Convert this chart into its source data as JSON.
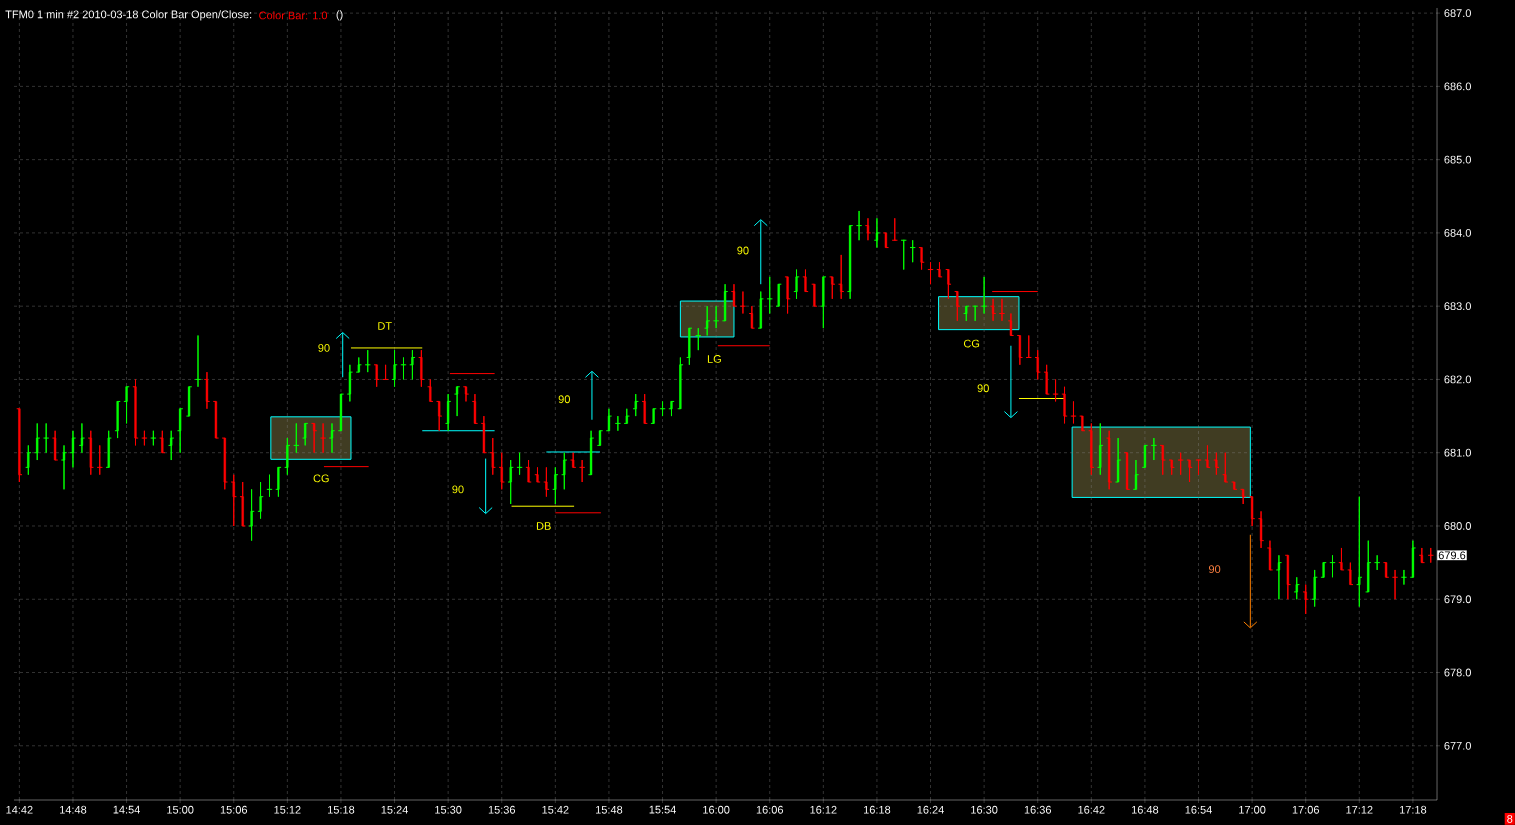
{
  "chart_data": {
    "type": "candlestick",
    "title": "TFM0 1 min #2 2010-03-18 Color Bar Open/Close:",
    "subtitle": "Color Bar: 1.0",
    "annotations": [
      "()",
      "8",
      {
        "text": "679.6",
        "x": 17.345,
        "y": 679.6
      },
      "90",
      "DT",
      "CG",
      "90",
      "DB",
      "90",
      "LG",
      "90",
      "CG",
      "90",
      "90"
    ],
    "x": [
      14.7,
      14.7167,
      14.7333,
      14.75,
      14.7667,
      14.7833,
      14.8,
      14.8167,
      14.8333,
      14.85,
      14.8667,
      14.8833,
      14.9,
      14.9167,
      14.9333,
      14.95,
      14.9667,
      14.9833,
      15,
      15.0167,
      15.0333,
      15.05,
      15.0667,
      15.0833,
      15.1,
      15.1167,
      15.1333,
      15.15,
      15.1667,
      15.1833,
      15.2,
      15.2167,
      15.2333,
      15.25,
      15.2667,
      15.2833,
      15.3,
      15.3167,
      15.3333,
      15.35,
      15.3667,
      15.3833,
      15.4,
      15.4167,
      15.4333,
      15.45,
      15.4667,
      15.4833,
      15.5,
      15.5167,
      15.5333,
      15.55,
      15.5667,
      15.5833,
      15.6,
      15.6167,
      15.6333,
      15.65,
      15.6667,
      15.6833,
      15.7,
      15.7167,
      15.7333,
      15.75,
      15.7667,
      15.7833,
      15.8,
      15.8167,
      15.8333,
      15.85,
      15.8667,
      15.8833,
      15.9,
      15.9167,
      15.9333,
      15.95,
      15.9667,
      15.9833,
      16,
      16.0167,
      16.0333,
      16.05,
      16.0667,
      16.0833,
      16.1,
      16.1167,
      16.1333,
      16.15,
      16.1667,
      16.1833,
      16.2,
      16.2167,
      16.2333,
      16.25,
      16.2667,
      16.2833,
      16.3,
      16.3167,
      16.3333,
      16.35,
      16.3667,
      16.3833,
      16.4,
      16.4167,
      16.4333,
      16.45,
      16.4667,
      16.4833,
      16.5,
      16.5167,
      16.5333,
      16.55,
      16.5667,
      16.5833,
      16.6,
      16.6167,
      16.6333,
      16.65,
      16.6667,
      16.6833,
      16.7,
      16.7167,
      16.7333,
      16.75,
      16.7667,
      16.7833,
      16.8,
      16.8167,
      16.8333,
      16.85,
      16.8667,
      16.8833,
      16.9,
      16.9167,
      16.9333,
      16.95,
      16.9667,
      16.9833,
      17,
      17.0167,
      17.0333,
      17.05,
      17.0667,
      17.0833,
      17.1,
      17.1167,
      17.1333,
      17.15,
      17.1667,
      17.1833,
      17.2,
      17.2167,
      17.2333,
      17.25,
      17.2667,
      17.2833,
      17.3,
      17.3167,
      17.3333
    ],
    "ohlc": [
      [
        681.6,
        681.6,
        680.6,
        680.7
      ],
      [
        680.8,
        681.1,
        680.7,
        681.0
      ],
      [
        681.0,
        681.4,
        680.9,
        681.2
      ],
      [
        681.2,
        681.4,
        681.0,
        681.2
      ],
      [
        681.2,
        681.3,
        680.9,
        680.9
      ],
      [
        680.9,
        681.1,
        680.5,
        681.0
      ],
      [
        681.0,
        681.3,
        680.8,
        681.2
      ],
      [
        681.1,
        681.4,
        681.0,
        681.2
      ],
      [
        681.2,
        681.3,
        680.7,
        680.8
      ],
      [
        680.8,
        681.1,
        680.7,
        680.8
      ],
      [
        680.8,
        681.3,
        680.8,
        681.2
      ],
      [
        681.3,
        681.7,
        681.2,
        681.7
      ],
      [
        681.7,
        681.9,
        681.4,
        681.9
      ],
      [
        681.9,
        682.0,
        681.1,
        681.2
      ],
      [
        681.2,
        681.3,
        681.1,
        681.2
      ],
      [
        681.2,
        681.3,
        681.1,
        681.2
      ],
      [
        681.2,
        681.3,
        681.0,
        681.0
      ],
      [
        681.1,
        681.3,
        680.9,
        681.2
      ],
      [
        681.3,
        681.6,
        681.0,
        681.6
      ],
      [
        681.5,
        681.9,
        681.5,
        681.9
      ],
      [
        682.0,
        682.6,
        681.9,
        682.0
      ],
      [
        682.0,
        682.1,
        681.6,
        681.7
      ],
      [
        681.7,
        681.7,
        681.2,
        681.2
      ],
      [
        681.2,
        681.2,
        680.5,
        680.6
      ],
      [
        680.6,
        680.7,
        680.0,
        680.4
      ],
      [
        680.4,
        680.6,
        680.0,
        680.0
      ],
      [
        680.0,
        680.5,
        679.8,
        680.2
      ],
      [
        680.2,
        680.6,
        680.1,
        680.4
      ],
      [
        680.5,
        680.7,
        680.4,
        680.5
      ],
      [
        680.5,
        680.8,
        680.4,
        680.8
      ],
      [
        680.8,
        681.2,
        680.7,
        681.1
      ],
      [
        681.1,
        681.4,
        681.0,
        681.1
      ],
      [
        681.2,
        681.4,
        681.1,
        681.4
      ],
      [
        681.4,
        681.4,
        681.0,
        681.3
      ],
      [
        681.2,
        681.4,
        681.0,
        681.2
      ],
      [
        681.2,
        681.4,
        681.0,
        681.3
      ],
      [
        681.3,
        681.8,
        681.3,
        681.8
      ],
      [
        681.8,
        682.2,
        681.7,
        682.1
      ],
      [
        682.1,
        682.3,
        682.1,
        682.2
      ],
      [
        682.2,
        682.4,
        682.1,
        682.2
      ],
      [
        682.2,
        682.2,
        681.9,
        682.0
      ],
      [
        682.0,
        682.2,
        682.0,
        682.0
      ],
      [
        682.0,
        682.4,
        681.9,
        682.2
      ],
      [
        682.2,
        682.3,
        682.0,
        682.2
      ],
      [
        682.2,
        682.4,
        682.0,
        682.3
      ],
      [
        682.3,
        682.4,
        681.9,
        682.0
      ],
      [
        681.9,
        682.0,
        681.7,
        681.7
      ],
      [
        681.7,
        681.7,
        681.3,
        681.5
      ],
      [
        681.4,
        681.8,
        681.3,
        681.7
      ],
      [
        681.8,
        681.9,
        681.5,
        681.9
      ],
      [
        681.9,
        681.9,
        681.7,
        681.8
      ],
      [
        681.7,
        681.8,
        681.4,
        681.4
      ],
      [
        681.4,
        681.5,
        681.0,
        681.0
      ],
      [
        681.0,
        681.2,
        680.7,
        680.8
      ],
      [
        680.8,
        681.0,
        680.5,
        680.6
      ],
      [
        680.6,
        680.9,
        680.3,
        680.8
      ],
      [
        680.8,
        681.0,
        680.7,
        680.8
      ],
      [
        680.8,
        680.9,
        680.6,
        680.6
      ],
      [
        680.7,
        680.8,
        680.6,
        680.6
      ],
      [
        680.6,
        680.8,
        680.4,
        680.5
      ],
      [
        680.5,
        680.8,
        680.3,
        680.7
      ],
      [
        680.7,
        681.0,
        680.5,
        680.9
      ],
      [
        680.9,
        681.0,
        680.8,
        680.8
      ],
      [
        680.8,
        680.9,
        680.6,
        680.8
      ],
      [
        680.7,
        681.3,
        680.7,
        681.2
      ],
      [
        681.1,
        681.3,
        681.1,
        681.3
      ],
      [
        681.3,
        681.6,
        681.3,
        681.5
      ],
      [
        681.4,
        681.5,
        681.3,
        681.4
      ],
      [
        681.4,
        681.6,
        681.4,
        681.5
      ],
      [
        681.6,
        681.8,
        681.5,
        681.7
      ],
      [
        681.7,
        681.8,
        681.4,
        681.4
      ],
      [
        681.4,
        681.6,
        681.4,
        681.6
      ],
      [
        681.6,
        681.7,
        681.5,
        681.6
      ],
      [
        681.6,
        681.7,
        681.5,
        681.7
      ],
      [
        681.6,
        682.3,
        681.6,
        682.2
      ],
      [
        682.3,
        682.7,
        682.2,
        682.7
      ],
      [
        682.6,
        682.7,
        682.4,
        682.6
      ],
      [
        682.7,
        683.0,
        682.6,
        682.8
      ],
      [
        682.8,
        683.0,
        682.7,
        682.8
      ],
      [
        682.8,
        683.3,
        682.8,
        683.2
      ],
      [
        683.2,
        683.3,
        683.0,
        683.0
      ],
      [
        683.0,
        683.2,
        682.9,
        683.0
      ],
      [
        682.9,
        683.0,
        682.7,
        682.7
      ],
      [
        682.7,
        683.2,
        682.7,
        683.1
      ],
      [
        683.1,
        683.4,
        682.9,
        683.1
      ],
      [
        683.0,
        683.3,
        683.0,
        683.3
      ],
      [
        683.4,
        683.4,
        682.9,
        683.1
      ],
      [
        683.2,
        683.5,
        683.1,
        683.4
      ],
      [
        683.4,
        683.5,
        683.2,
        683.2
      ],
      [
        683.3,
        683.3,
        683.0,
        683.0
      ],
      [
        683.0,
        683.4,
        682.7,
        683.4
      ],
      [
        683.4,
        683.4,
        683.1,
        683.3
      ],
      [
        683.3,
        683.7,
        683.1,
        683.2
      ],
      [
        683.2,
        684.1,
        683.1,
        684.1
      ],
      [
        684.1,
        684.3,
        683.9,
        684.1
      ],
      [
        684.1,
        684.2,
        683.9,
        684.0
      ],
      [
        683.9,
        684.2,
        683.8,
        684.0
      ],
      [
        684.0,
        684.0,
        683.8,
        683.8
      ],
      [
        683.9,
        684.2,
        683.9,
        683.9
      ],
      [
        683.9,
        683.9,
        683.5,
        683.9
      ],
      [
        683.8,
        683.9,
        683.6,
        683.8
      ],
      [
        683.8,
        683.8,
        683.5,
        683.6
      ],
      [
        683.5,
        683.6,
        683.3,
        683.5
      ],
      [
        683.5,
        683.6,
        683.4,
        683.4
      ],
      [
        683.5,
        683.5,
        683.1,
        683.3
      ],
      [
        683.2,
        683.2,
        682.8,
        683.0
      ],
      [
        682.9,
        683.0,
        682.8,
        683.0
      ],
      [
        683.0,
        683.0,
        682.8,
        683.0
      ],
      [
        683.0,
        683.4,
        682.9,
        683.0
      ],
      [
        683.0,
        683.1,
        682.8,
        682.9
      ],
      [
        682.9,
        683.1,
        682.8,
        682.9
      ],
      [
        682.8,
        682.9,
        682.6,
        682.6
      ],
      [
        682.6,
        682.6,
        682.2,
        682.3
      ],
      [
        682.3,
        682.6,
        682.3,
        682.3
      ],
      [
        682.3,
        682.4,
        682.0,
        682.1
      ],
      [
        682.1,
        682.2,
        681.8,
        681.8
      ],
      [
        681.8,
        682.0,
        681.7,
        681.8
      ],
      [
        681.8,
        681.9,
        681.4,
        681.5
      ],
      [
        681.5,
        681.7,
        681.4,
        681.5
      ],
      [
        681.5,
        681.5,
        681.3,
        681.3
      ],
      [
        681.3,
        681.4,
        680.7,
        680.8
      ],
      [
        680.8,
        681.4,
        680.7,
        681.1
      ],
      [
        681.2,
        681.3,
        680.5,
        680.6
      ],
      [
        680.6,
        681.2,
        680.6,
        680.9
      ],
      [
        681.0,
        681.0,
        680.5,
        680.5
      ],
      [
        680.5,
        680.9,
        680.5,
        680.7
      ],
      [
        680.8,
        681.1,
        680.8,
        681.1
      ],
      [
        681.1,
        681.2,
        680.9,
        681.1
      ],
      [
        681.1,
        681.1,
        680.7,
        680.9
      ],
      [
        680.9,
        680.9,
        680.7,
        680.8
      ],
      [
        680.9,
        681.0,
        680.7,
        680.9
      ],
      [
        680.9,
        680.9,
        680.6,
        680.8
      ],
      [
        680.9,
        680.9,
        680.7,
        680.9
      ],
      [
        680.9,
        681.1,
        680.8,
        680.8
      ],
      [
        680.9,
        681.0,
        680.7,
        680.8
      ],
      [
        680.7,
        681.0,
        680.6,
        680.6
      ],
      [
        680.6,
        680.6,
        680.5,
        680.5
      ],
      [
        680.5,
        680.5,
        680.3,
        680.4
      ],
      [
        680.4,
        680.4,
        680.0,
        680.1
      ],
      [
        680.1,
        680.2,
        679.7,
        679.8
      ],
      [
        679.7,
        679.8,
        679.4,
        679.4
      ],
      [
        679.4,
        679.6,
        679.0,
        679.5
      ],
      [
        679.6,
        679.6,
        679.0,
        679.2
      ],
      [
        679.1,
        679.3,
        679.0,
        679.2
      ],
      [
        679.1,
        679.2,
        678.8,
        679.0
      ],
      [
        679.0,
        679.4,
        678.9,
        679.3
      ],
      [
        679.3,
        679.5,
        679.3,
        679.5
      ],
      [
        679.5,
        679.6,
        679.3,
        679.5
      ],
      [
        679.5,
        679.7,
        679.4,
        679.4
      ],
      [
        679.4,
        679.5,
        679.2,
        679.2
      ],
      [
        679.2,
        680.4,
        678.9,
        679.3
      ],
      [
        679.1,
        679.8,
        679.1,
        679.5
      ],
      [
        679.5,
        679.6,
        679.4,
        679.5
      ],
      [
        679.5,
        679.5,
        679.3,
        679.3
      ],
      [
        679.3,
        679.4,
        679.0,
        679.3
      ],
      [
        679.3,
        679.4,
        679.2,
        679.3
      ],
      [
        679.3,
        679.8,
        679.3,
        679.7
      ],
      [
        679.6,
        679.7,
        679.5,
        679.5
      ],
      [
        679.6,
        679.7,
        679.5,
        679.6
      ]
    ],
    "colors": [
      "#ff0000",
      "#00ff00",
      "#00ff00",
      "#00ff00",
      "#ff0000",
      "#00ff00",
      "#00ff00",
      "#00ff00",
      "#ff0000",
      "#ff0000",
      "#00ff00",
      "#00ff00",
      "#00ff00",
      "#ff0000",
      "#ff0000",
      "#00ff00",
      "#ff0000",
      "#00ff00",
      "#00ff00",
      "#00ff00",
      "#00ff00",
      "#ff0000",
      "#ff0000",
      "#ff0000",
      "#ff0000",
      "#ff0000",
      "#00ff00",
      "#00ff00",
      "#00ff00",
      "#00ff00",
      "#00ff00",
      "#00ff00",
      "#00ff00",
      "#ff0000",
      "#ff0000",
      "#00ff00",
      "#00ff00",
      "#00ff00",
      "#00ff00",
      "#00ff00",
      "#ff0000",
      "#ff0000",
      "#00ff00",
      "#00ff00",
      "#00ff00",
      "#ff0000",
      "#ff0000",
      "#ff0000",
      "#00ff00",
      "#00ff00",
      "#ff0000",
      "#ff0000",
      "#ff0000",
      "#ff0000",
      "#ff0000",
      "#00ff00",
      "#00ff00",
      "#ff0000",
      "#ff0000",
      "#ff0000",
      "#00ff00",
      "#00ff00",
      "#ff0000",
      "#ff0000",
      "#00ff00",
      "#00ff00",
      "#00ff00",
      "#00ff00",
      "#00ff00",
      "#00ff00",
      "#ff0000",
      "#00ff00",
      "#00ff00",
      "#00ff00",
      "#00ff00",
      "#00ff00",
      "#00ff00",
      "#00ff00",
      "#00ff00",
      "#00ff00",
      "#ff0000",
      "#ff0000",
      "#ff0000",
      "#00ff00",
      "#00ff00",
      "#00ff00",
      "#ff0000",
      "#00ff00",
      "#ff0000",
      "#ff0000",
      "#00ff00",
      "#ff0000",
      "#ff0000",
      "#00ff00",
      "#00ff00",
      "#ff0000",
      "#00ff00",
      "#ff0000",
      "#ff0000",
      "#00ff00",
      "#00ff00",
      "#ff0000",
      "#ff0000",
      "#ff0000",
      "#ff0000",
      "#ff0000",
      "#00ff00",
      "#00ff00",
      "#00ff00",
      "#ff0000",
      "#ff0000",
      "#ff0000",
      "#ff0000",
      "#ff0000",
      "#ff0000",
      "#ff0000",
      "#ff0000",
      "#ff0000",
      "#ff0000",
      "#ff0000",
      "#ff0000",
      "#00ff00",
      "#ff0000",
      "#00ff00",
      "#ff0000",
      "#00ff00",
      "#00ff00",
      "#00ff00",
      "#ff0000",
      "#ff0000",
      "#ff0000",
      "#ff0000",
      "#ff0000",
      "#ff0000",
      "#ff0000",
      "#ff0000",
      "#ff0000",
      "#ff0000",
      "#ff0000",
      "#ff0000",
      "#ff0000",
      "#00ff00",
      "#ff0000",
      "#00ff00",
      "#ff0000",
      "#00ff00",
      "#00ff00",
      "#00ff00",
      "#ff0000",
      "#ff0000",
      "#00ff00",
      "#00ff00",
      "#00ff00",
      "#ff0000",
      "#ff0000",
      "#00ff00",
      "#00ff00",
      "#ff0000",
      "#ff0000"
    ],
    "series": [
      {
        "type": "line",
        "color": "#ffff00",
        "x": [
          15.3187,
          15.4517
        ],
        "values": [
          682.43,
          682.43
        ]
      },
      {
        "type": "line",
        "color": "#ff0000",
        "x": [
          15.5033,
          15.5867
        ],
        "values": [
          682.08,
          682.08
        ]
      },
      {
        "type": "line",
        "color": "#00ffff",
        "x": [
          15.4517,
          15.5867
        ],
        "values": [
          681.3,
          681.3
        ]
      },
      {
        "type": "line",
        "color": "#ff0000",
        "x": [
          15.2683,
          15.3517
        ],
        "values": [
          680.81,
          680.81
        ]
      },
      {
        "type": "line",
        "color": "#00ffff",
        "x": [
          15.6833,
          15.7833
        ],
        "values": [
          681.01,
          681.01
        ]
      },
      {
        "type": "line",
        "color": "#ffff00",
        "x": [
          15.6183,
          15.735
        ],
        "values": [
          680.27,
          680.27
        ]
      },
      {
        "type": "line",
        "color": "#ff0000",
        "x": [
          15.7,
          15.785
        ],
        "values": [
          680.18,
          680.18
        ]
      },
      {
        "type": "line",
        "color": "#ff0000",
        "x": [
          16.0033,
          16.1
        ],
        "values": [
          682.46,
          682.46
        ]
      },
      {
        "type": "line",
        "color": "#ff0000",
        "x": [
          16.515,
          16.6
        ],
        "values": [
          683.2,
          683.2
        ]
      },
      {
        "type": "line",
        "color": "#ffff00",
        "x": [
          16.565,
          16.65
        ],
        "values": [
          681.74,
          681.74
        ]
      }
    ],
    "xlim": [
      14.69,
      17.345
    ],
    "ylim": [
      676.26,
      687.07
    ],
    "xticks": [
      {
        "value": 14.7,
        "label": "14:42"
      },
      {
        "value": 14.8,
        "label": "14:48"
      },
      {
        "value": 14.9,
        "label": "14:54"
      },
      {
        "value": 15.0,
        "label": "15:00"
      },
      {
        "value": 15.1,
        "label": "15:06"
      },
      {
        "value": 15.2,
        "label": "15:12"
      },
      {
        "value": 15.3,
        "label": "15:18"
      },
      {
        "value": 15.4,
        "label": "15:24"
      },
      {
        "value": 15.5,
        "label": "15:30"
      },
      {
        "value": 15.6,
        "label": "15:36"
      },
      {
        "value": 15.7,
        "label": "15:42"
      },
      {
        "value": 15.8,
        "label": "15:48"
      },
      {
        "value": 15.9,
        "label": "15:54"
      },
      {
        "value": 16.0,
        "label": "16:00"
      },
      {
        "value": 16.1,
        "label": "16:06"
      },
      {
        "value": 16.2,
        "label": "16:12"
      },
      {
        "value": 16.3,
        "label": "16:18"
      },
      {
        "value": 16.4,
        "label": "16:24"
      },
      {
        "value": 16.5,
        "label": "16:30"
      },
      {
        "value": 16.6,
        "label": "16:36"
      },
      {
        "value": 16.7,
        "label": "16:42"
      },
      {
        "value": 16.8,
        "label": "16:48"
      },
      {
        "value": 16.9,
        "label": "16:54"
      },
      {
        "value": 17.0,
        "label": "17:00"
      },
      {
        "value": 17.1,
        "label": "17:06"
      },
      {
        "value": 17.2,
        "label": "17:12"
      },
      {
        "value": 17.3,
        "label": "17:18"
      }
    ],
    "yticks": [
      {
        "value": 677,
        "label": "677.0"
      },
      {
        "value": 678,
        "label": "678.0"
      },
      {
        "value": 679,
        "label": "679.0"
      },
      {
        "value": 680,
        "label": "680.0"
      },
      {
        "value": 681,
        "label": "681.0"
      },
      {
        "value": 682,
        "label": "682.0"
      },
      {
        "value": 683,
        "label": "683.0"
      },
      {
        "value": 684,
        "label": "684.0"
      },
      {
        "value": 685,
        "label": "685.0"
      },
      {
        "value": 686,
        "label": "686.0"
      },
      {
        "value": 687,
        "label": "687.0"
      }
    ],
    "grid": true
  }
}
